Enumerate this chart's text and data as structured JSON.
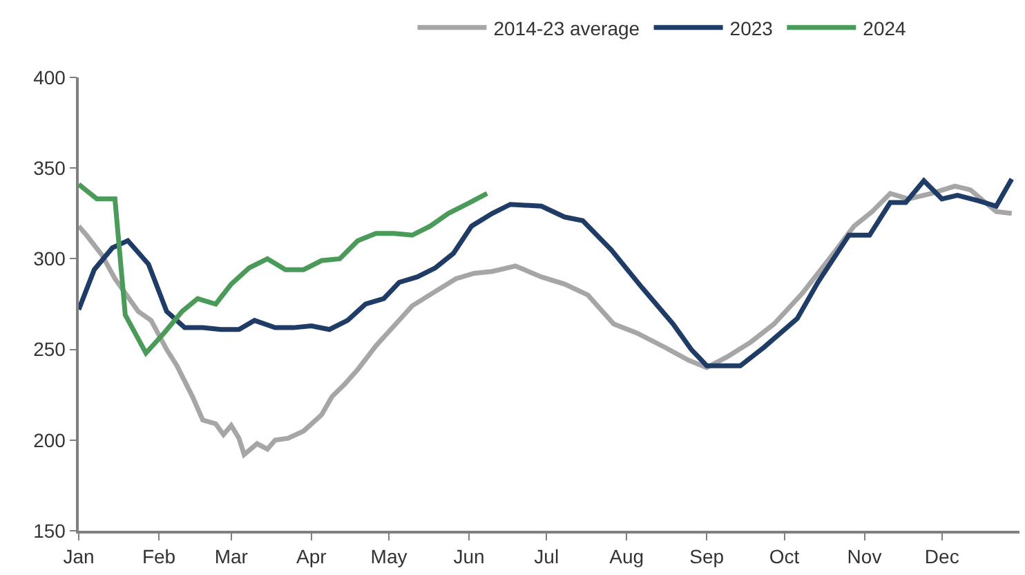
{
  "chart_data": {
    "type": "line",
    "legend": "top",
    "xlim": [
      "--01-01",
      "--12-31"
    ],
    "xticks": [
      {
        "value": "--01-01",
        "label": "Jan"
      },
      {
        "value": "--02-01",
        "label": "Feb"
      },
      {
        "value": "--03-01",
        "label": "Mar"
      },
      {
        "value": "--04-01",
        "label": "Apr"
      },
      {
        "value": "--05-01",
        "label": "May"
      },
      {
        "value": "--06-01",
        "label": "Jun"
      },
      {
        "value": "--07-01",
        "label": "Jul"
      },
      {
        "value": "--08-01",
        "label": "Aug"
      },
      {
        "value": "--09-01",
        "label": "Sep"
      },
      {
        "value": "--10-01",
        "label": "Oct"
      },
      {
        "value": "--11-01",
        "label": "Nov"
      },
      {
        "value": "--12-01",
        "label": "Dec"
      }
    ],
    "ylim": [
      150,
      400
    ],
    "yticks": [
      150,
      200,
      250,
      300,
      350,
      400
    ],
    "series": [
      {
        "name": "2014-23 average",
        "color": "#a6a6a6",
        "x": [
          "--01-01",
          "--01-04",
          "--01-10",
          "--01-15",
          "--01-20",
          "--01-24",
          "--01-29",
          "--02-04",
          "--02-08",
          "--02-14",
          "--02-18",
          "--02-23",
          "--02-26",
          "--03-01",
          "--03-04",
          "--03-06",
          "--03-11",
          "--03-15",
          "--03-18",
          "--03-23",
          "--03-29",
          "--04-05",
          "--04-09",
          "--04-14",
          "--04-19",
          "--04-26",
          "--05-03",
          "--05-10",
          "--05-19",
          "--05-27",
          "--06-03",
          "--06-10",
          "--06-19",
          "--06-29",
          "--07-08",
          "--07-17",
          "--07-27",
          "--08-05",
          "--08-16",
          "--08-25",
          "--09-01",
          "--09-09",
          "--09-18",
          "--09-27",
          "--10-08",
          "--10-19",
          "--10-28",
          "--11-04",
          "--11-11",
          "--11-18",
          "--11-27",
          "--12-06",
          "--12-12",
          "--12-22",
          "--12-28"
        ],
        "values": [
          318,
          313,
          302,
          289,
          279,
          271,
          266,
          250,
          241,
          224,
          211,
          209,
          203,
          208,
          201,
          192,
          198,
          195,
          200,
          201,
          205,
          214,
          224,
          231,
          239,
          252,
          263,
          274,
          282,
          289,
          292,
          293,
          296,
          290,
          286,
          280,
          264,
          259,
          251,
          244,
          240,
          246,
          254,
          264,
          281,
          301,
          318,
          326,
          336,
          333,
          336,
          340,
          338,
          326,
          325
        ]
      },
      {
        "name": "2023",
        "color": "#1f3c66",
        "x": [
          "--01-01",
          "--01-07",
          "--01-14",
          "--01-20",
          "--01-28",
          "--02-04",
          "--02-11",
          "--02-18",
          "--02-25",
          "--03-04",
          "--03-10",
          "--03-18",
          "--03-25",
          "--04-01",
          "--04-08",
          "--04-15",
          "--04-22",
          "--04-29",
          "--05-05",
          "--05-12",
          "--05-19",
          "--05-26",
          "--06-02",
          "--06-10",
          "--06-17",
          "--06-29",
          "--07-08",
          "--07-15",
          "--07-26",
          "--08-07",
          "--08-19",
          "--08-26",
          "--09-01",
          "--09-14",
          "--09-23",
          "--10-06",
          "--10-14",
          "--10-26",
          "--11-03",
          "--11-11",
          "--11-17",
          "--11-24",
          "--12-01",
          "--12-07",
          "--12-15",
          "--12-22",
          "--12-28"
        ],
        "values": [
          272,
          294,
          306,
          310,
          297,
          271,
          262,
          262,
          261,
          261,
          266,
          262,
          262,
          263,
          261,
          266,
          275,
          278,
          287,
          290,
          295,
          303,
          318,
          325,
          330,
          329,
          323,
          321,
          305,
          284,
          264,
          250,
          241,
          241,
          251,
          267,
          287,
          313,
          313,
          331,
          331,
          343,
          333,
          335,
          332,
          329,
          344
        ]
      },
      {
        "name": "2024",
        "color": "#4a9a5a",
        "x": [
          "--01-01",
          "--01-08",
          "--01-15",
          "--01-19",
          "--01-27",
          "--02-03",
          "--02-10",
          "--02-16",
          "--02-23",
          "--03-01",
          "--03-08",
          "--03-15",
          "--03-22",
          "--03-29",
          "--04-05",
          "--04-12",
          "--04-19",
          "--04-26",
          "--05-03",
          "--05-10",
          "--05-17",
          "--05-24",
          "--05-31",
          "--06-08"
        ],
        "values": [
          341,
          333,
          333,
          269,
          248,
          259,
          271,
          278,
          275,
          286,
          295,
          300,
          294,
          294,
          299,
          300,
          310,
          314,
          314,
          313,
          318,
          325,
          330,
          336
        ]
      }
    ]
  }
}
